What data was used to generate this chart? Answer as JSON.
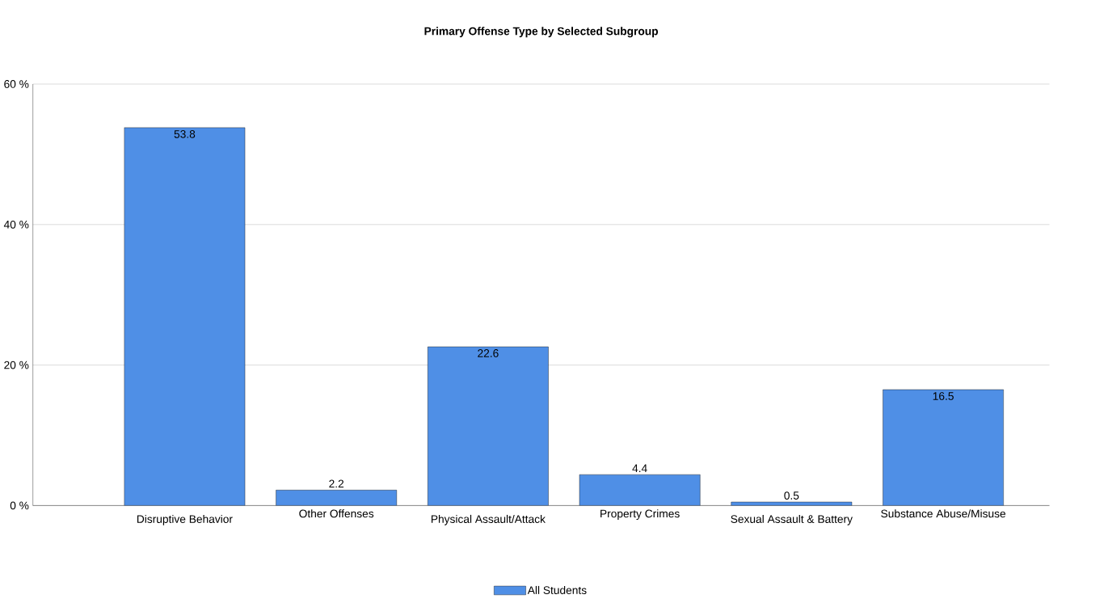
{
  "chart_data": {
    "type": "bar",
    "title": "Primary Offense Type by Selected Subgroup",
    "categories": [
      "Disruptive Behavior",
      "Other Offenses",
      "Physical Assault/Attack",
      "Property Crimes",
      "Sexual Assault & Battery",
      "Substance Abuse/Misuse"
    ],
    "series": [
      {
        "name": "All Students",
        "color": "#4f8fe6",
        "values": [
          53.8,
          2.2,
          22.6,
          4.4,
          0.5,
          16.5
        ]
      }
    ],
    "ylim": [
      0,
      60
    ],
    "yticks": [
      {
        "value": 0,
        "label": "0 %"
      },
      {
        "value": 20,
        "label": "20 %"
      },
      {
        "value": 40,
        "label": "40 %"
      },
      {
        "value": 60,
        "label": "60 %"
      }
    ],
    "grid": "y",
    "data_labels": true,
    "legend": "bottom"
  }
}
